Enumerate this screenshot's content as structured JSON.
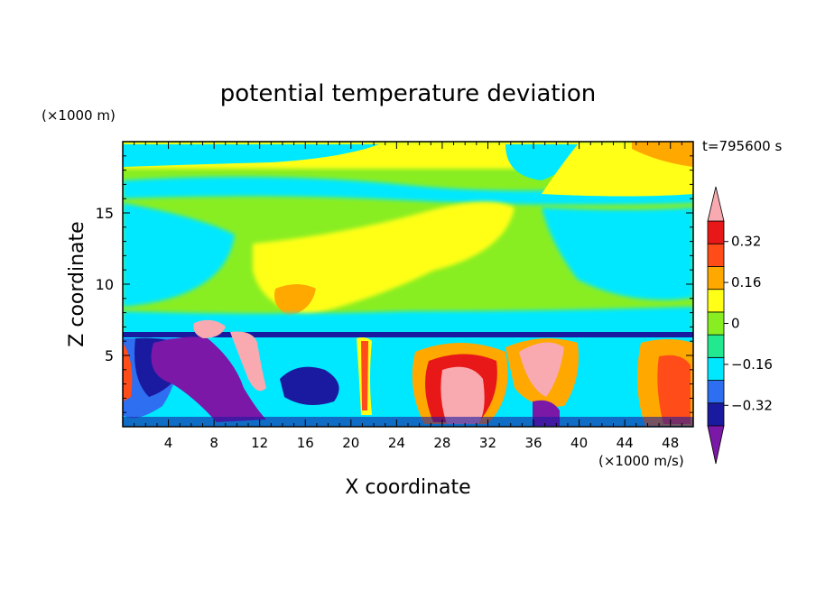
{
  "chart_data": {
    "type": "heatmap",
    "title": "potential temperature deviation",
    "xlabel": "X coordinate",
    "ylabel": "Z coordinate",
    "x_unit_label": "(×1000 m/s)",
    "y_unit_label": "(×1000 m)",
    "time_label": "t=795600 s",
    "xlim": [
      0,
      50
    ],
    "ylim": [
      0,
      20
    ],
    "x_ticks": [
      4,
      8,
      12,
      16,
      20,
      24,
      28,
      32,
      36,
      40,
      44,
      48
    ],
    "y_ticks": [
      5,
      10,
      15
    ],
    "colorbar": {
      "levels": [
        -0.4,
        -0.32,
        -0.24,
        -0.16,
        -0.08,
        0,
        0.08,
        0.16,
        0.24,
        0.32,
        0.4
      ],
      "tick_labels": [
        "0.32",
        "0.16",
        "0",
        "−0.16",
        "−0.32"
      ],
      "tick_values": [
        0.32,
        0.16,
        0,
        -0.16,
        -0.32
      ],
      "colors": [
        "#7b18a8",
        "#1a1aa0",
        "#2e6ef0",
        "#00e8ff",
        "#22e890",
        "#88ee22",
        "#ffff18",
        "#ffa800",
        "#ff4c18",
        "#e81818",
        "#f8aab0"
      ]
    },
    "field_regions": [
      {
        "region": "upper layer z>6.5 km",
        "dominant_values": [
          0,
          0.08,
          0.16,
          -0.08
        ]
      },
      {
        "region": "lower layer z<6.5 km",
        "dominant_values": [
          -0.4,
          -0.32,
          -0.16,
          0.08,
          0.24,
          0.4
        ]
      }
    ]
  }
}
